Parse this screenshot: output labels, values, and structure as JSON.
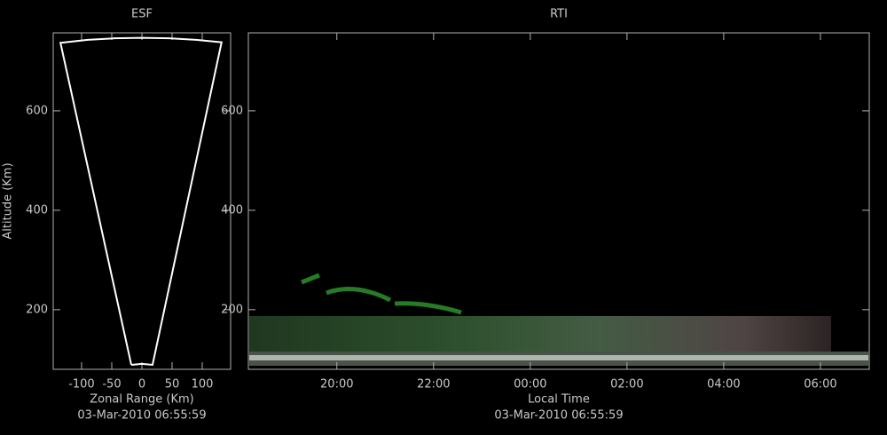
{
  "chart_data": [
    {
      "type": "line",
      "title": "ESF",
      "subtitle": "03-Mar-2010 06:55:59",
      "x_label": "Zonal Range (Km)",
      "y_label": "Altitude (Km)",
      "xlim": [
        -147,
        147
      ],
      "ylim": [
        80,
        757
      ],
      "xticks": [
        -100,
        -50,
        0,
        50,
        100
      ],
      "yticks": [
        200,
        400,
        600
      ],
      "series": [
        {
          "color": "#ffffff",
          "x": [
            -17.6,
            -135,
            -90,
            -45,
            0,
            45,
            90,
            132,
            17.6,
            0,
            -17.6
          ],
          "values": [
            89,
            737,
            743,
            746,
            747,
            746,
            743,
            738,
            89,
            91,
            89
          ]
        }
      ]
    },
    {
      "type": "heatmap",
      "title": "RTI",
      "subtitle": "03-Mar-2010 06:55:59",
      "x_label": "Local Time",
      "xlim": [
        18.17,
        31.01
      ],
      "ylim": [
        80,
        757
      ],
      "xticks": [
        {
          "value": 20,
          "label": "20:00"
        },
        {
          "value": 22,
          "label": "22:00"
        },
        {
          "value": 24,
          "label": "00:00"
        },
        {
          "value": 26,
          "label": "02:00"
        },
        {
          "value": 28,
          "label": "04:00"
        },
        {
          "value": 30,
          "label": "06:00"
        }
      ],
      "yticks": [
        200,
        400,
        600
      ]
    }
  ]
}
